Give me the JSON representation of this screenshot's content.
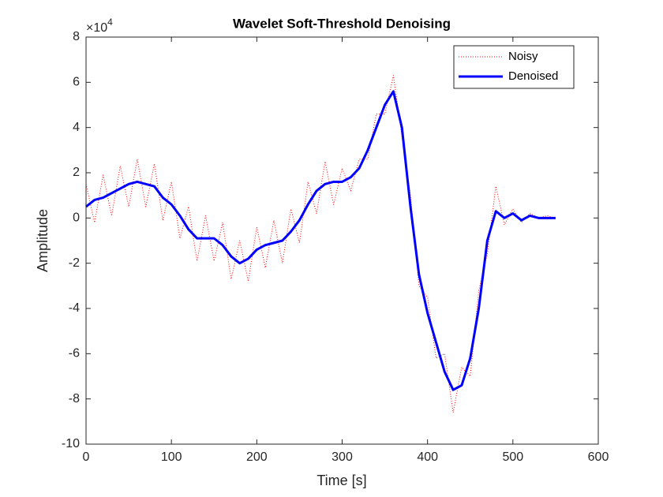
{
  "chart_data": {
    "type": "line",
    "title": "Wavelet Soft-Threshold Denoising",
    "x_label": "Time [s]",
    "y_label": "Amplitude",
    "y_multiplier": {
      "base": "×10",
      "exponent": "4"
    },
    "x": [
      0,
      10,
      20,
      30,
      40,
      50,
      60,
      70,
      80,
      90,
      100,
      110,
      120,
      130,
      140,
      150,
      160,
      170,
      180,
      190,
      200,
      210,
      220,
      230,
      240,
      250,
      260,
      270,
      280,
      290,
      300,
      310,
      320,
      330,
      340,
      350,
      360,
      370,
      380,
      390,
      400,
      410,
      420,
      430,
      440,
      450,
      460,
      470,
      480,
      490,
      500,
      510,
      520,
      530,
      540,
      550
    ],
    "series": [
      {
        "name": "Noisy",
        "color": "#ff0000",
        "style": "dotted",
        "width": 1,
        "values": [
          1.5,
          -0.2,
          1.9,
          0.1,
          2.3,
          0.5,
          2.6,
          0.5,
          2.4,
          -0.1,
          1.6,
          -0.9,
          0.5,
          -1.9,
          0.1,
          -1.9,
          -0.2,
          -2.7,
          -1.0,
          -2.8,
          -0.4,
          -2.2,
          -0.1,
          -2.0,
          0.4,
          -1.1,
          1.6,
          0.2,
          2.5,
          0.6,
          2.2,
          1.2,
          2.6,
          2.6,
          4.6,
          4.6,
          6.3,
          3.6,
          1.0,
          -3.0,
          -3.5,
          -6.2,
          -6.0,
          -8.6,
          -6.6,
          -7.0,
          -3.2,
          -1.6,
          1.4,
          -0.3,
          0.4,
          -0.2,
          0.2,
          0.0,
          0.1,
          0.0
        ]
      },
      {
        "name": "Denoised",
        "color": "#0000ff",
        "style": "solid",
        "width": 3,
        "values": [
          0.5,
          0.8,
          0.9,
          1.1,
          1.3,
          1.5,
          1.6,
          1.5,
          1.4,
          0.9,
          0.6,
          0.1,
          -0.5,
          -0.9,
          -0.9,
          -0.9,
          -1.2,
          -1.7,
          -2.0,
          -1.8,
          -1.4,
          -1.2,
          -1.1,
          -1.0,
          -0.6,
          -0.1,
          0.6,
          1.2,
          1.5,
          1.6,
          1.6,
          1.8,
          2.2,
          3.0,
          4.0,
          5.0,
          5.6,
          4.0,
          0.5,
          -2.5,
          -4.2,
          -5.5,
          -6.8,
          -7.6,
          -7.4,
          -6.2,
          -4.0,
          -1.0,
          0.3,
          0.0,
          0.2,
          -0.1,
          0.1,
          0.0,
          0.0,
          0.0
        ]
      }
    ],
    "xlim": [
      0,
      600
    ],
    "xticks": [
      0,
      100,
      200,
      300,
      400,
      500,
      600
    ],
    "ylim": [
      -10,
      8
    ],
    "yticks": [
      -10,
      -8,
      -6,
      -4,
      -2,
      0,
      2,
      4,
      6,
      8
    ],
    "legend": "top-right",
    "grid": false
  }
}
